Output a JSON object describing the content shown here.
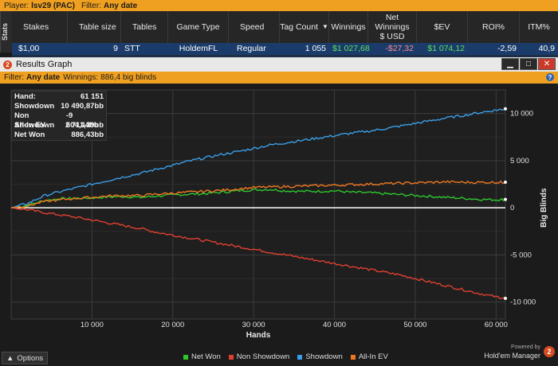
{
  "topbar": {
    "player_label": "Player:",
    "player_value": "lsv29 (PAC)",
    "filter_label": "Filter:",
    "filter_value": "Any date"
  },
  "side_tab": "Stats",
  "table": {
    "columns": [
      "Stakes",
      "Table size",
      "Tables",
      "Game Type",
      "Speed",
      "Tag Count",
      "Winnings",
      "Net Winnings $ USD",
      "$EV",
      "ROI%",
      "ITM%"
    ],
    "sorted_column": "Tag Count",
    "row": [
      "$1,00",
      "9",
      "STT",
      "HoldemFL",
      "Regular",
      "1 055",
      "$1 027,68",
      "-$27,32",
      "$1 074,12",
      "-2,59",
      "40,9"
    ]
  },
  "window": {
    "title": "Results Graph",
    "app_icon": "2",
    "minimize": "▁",
    "maximize": "□",
    "close": "✕"
  },
  "filterbar": {
    "filter_label": "Filter:",
    "filter_value": "Any date",
    "winnings_label": "Winnings:",
    "winnings_value": "886,4 big blinds",
    "help": "?"
  },
  "stats": [
    {
      "label": "Hand:",
      "value": "61 151"
    },
    {
      "label": "Showdown",
      "value": "10 490,87bb"
    },
    {
      "label": "Non Showdown",
      "value": "-9 604,44bb"
    },
    {
      "label": "All-In EV",
      "value": "2 711,39bb"
    },
    {
      "label": "Net Won",
      "value": "886,43bb"
    }
  ],
  "options": {
    "label": "Options",
    "arrow": "▲"
  },
  "brand": {
    "powered": "Powered by",
    "name": "Hold'em Manager",
    "logo": "2"
  },
  "colors": {
    "net_won": "#2ec82e",
    "non_showdown": "#e04030",
    "showdown": "#3a9ee8",
    "all_in_ev": "#f07820",
    "accent": "#f0a020"
  },
  "chart_data": {
    "type": "line",
    "xlabel": "Hands",
    "ylabel": "Big Blinds",
    "xlim": [
      0,
      61151
    ],
    "ylim": [
      -11800,
      12500
    ],
    "xticks": [
      10000,
      20000,
      30000,
      40000,
      50000,
      60000
    ],
    "xtick_labels": [
      "10 000",
      "20 000",
      "30 000",
      "40 000",
      "50 000",
      "60 000"
    ],
    "yticks": [
      10000,
      5000,
      0,
      -5000,
      -10000
    ],
    "ytick_labels": [
      "10 000",
      "5 000",
      "0",
      "-5 000",
      "-10 000"
    ],
    "grid": true,
    "legend_position": "bottom",
    "x": [
      0,
      2000,
      4000,
      6000,
      8000,
      10000,
      12000,
      14000,
      16000,
      18000,
      20000,
      22000,
      24000,
      26000,
      28000,
      30000,
      32000,
      34000,
      36000,
      38000,
      40000,
      42000,
      44000,
      46000,
      48000,
      50000,
      52000,
      54000,
      56000,
      58000,
      60000,
      61151
    ],
    "series": [
      {
        "name": "Net Won",
        "color": "#2ec82e",
        "values": [
          0,
          250,
          750,
          950,
          1000,
          1050,
          1150,
          1200,
          1100,
          1250,
          1350,
          1450,
          1500,
          1650,
          1800,
          1900,
          1950,
          1800,
          1750,
          1750,
          1800,
          1650,
          1600,
          1500,
          1400,
          1300,
          1200,
          1100,
          1000,
          900,
          850,
          886
        ]
      },
      {
        "name": "Non Showdown",
        "color": "#e04030",
        "values": [
          0,
          -200,
          -500,
          -750,
          -1000,
          -1300,
          -1600,
          -1900,
          -2200,
          -2600,
          -2900,
          -3200,
          -3500,
          -3800,
          -4100,
          -4400,
          -4700,
          -5000,
          -5300,
          -5600,
          -5900,
          -6200,
          -6500,
          -6800,
          -7100,
          -7500,
          -7900,
          -8300,
          -8700,
          -9100,
          -9450,
          -9604
        ]
      },
      {
        "name": "Showdown",
        "color": "#3a9ee8",
        "values": [
          0,
          450,
          1250,
          1700,
          2100,
          2500,
          2900,
          3300,
          3650,
          4100,
          4500,
          4950,
          5300,
          5650,
          5950,
          6300,
          6650,
          6900,
          7150,
          7400,
          7650,
          7900,
          8100,
          8350,
          8650,
          8950,
          9250,
          9550,
          9800,
          10100,
          10350,
          10491
        ]
      },
      {
        "name": "All-In EV",
        "color": "#f07820",
        "values": [
          0,
          200,
          650,
          850,
          1000,
          1100,
          1250,
          1300,
          1300,
          1450,
          1550,
          1650,
          1750,
          1850,
          2000,
          2150,
          2200,
          2250,
          2300,
          2350,
          2400,
          2450,
          2500,
          2550,
          2600,
          2650,
          2700,
          2750,
          2700,
          2700,
          2700,
          2711
        ]
      }
    ]
  }
}
